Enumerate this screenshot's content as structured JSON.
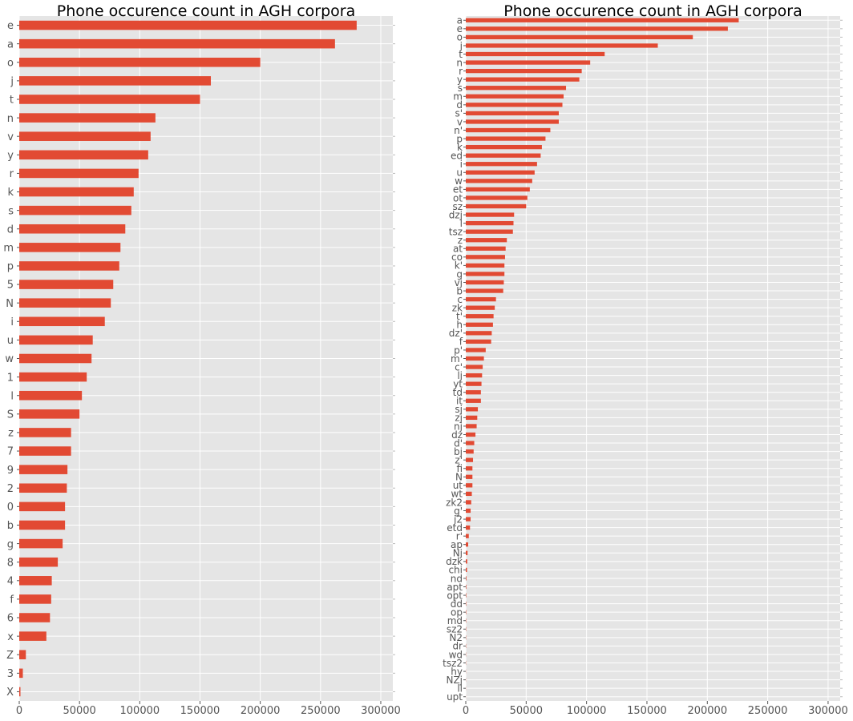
{
  "chart_data": [
    {
      "type": "bar",
      "orientation": "horizontal",
      "title": "Phone occurence count in AGH corpora",
      "xlabel": "",
      "ylabel": "",
      "xlim": [
        0,
        310000
      ],
      "xticks": [
        0,
        50000,
        100000,
        150000,
        200000,
        250000,
        300000
      ],
      "grid": true,
      "bar_color": "#e24a33",
      "categories": [
        "e",
        "a",
        "o",
        "j",
        "t",
        "n",
        "v",
        "y",
        "r",
        "k",
        "s",
        "d",
        "m",
        "p",
        "5",
        "N",
        "i",
        "u",
        "w",
        "1",
        "l",
        "S",
        "z",
        "7",
        "9",
        "2",
        "0",
        "b",
        "g",
        "8",
        "4",
        "f",
        "6",
        "x",
        "Z",
        "3",
        "X"
      ],
      "values": [
        280000,
        262000,
        200000,
        159000,
        150000,
        113000,
        109000,
        107000,
        99000,
        95000,
        93000,
        88000,
        84000,
        83000,
        78000,
        76000,
        71000,
        61000,
        60000,
        56000,
        52000,
        50000,
        43000,
        43000,
        40000,
        39500,
        38000,
        38000,
        36000,
        32000,
        27000,
        26500,
        25500,
        22500,
        5500,
        3000,
        1000
      ]
    },
    {
      "type": "bar",
      "orientation": "horizontal",
      "title": "Phone occurence count in AGH corpora",
      "xlabel": "",
      "ylabel": "",
      "xlim": [
        0,
        310000
      ],
      "xticks": [
        0,
        50000,
        100000,
        150000,
        200000,
        250000,
        300000
      ],
      "grid": true,
      "bar_color": "#e24a33",
      "categories": [
        "a",
        "e",
        "o",
        "j",
        "t",
        "n",
        "r",
        "y",
        "s",
        "m",
        "d",
        "s'",
        "v",
        "n'",
        "p",
        "k",
        "ed",
        "i",
        "u",
        "w",
        "et",
        "ot",
        "sz",
        "dzj",
        "l",
        "tsz",
        "z",
        "at",
        "co",
        "k'",
        "g",
        "vj",
        "b",
        "c",
        "zk",
        "t'",
        "h",
        "dz'",
        "f",
        "p'",
        "m'",
        "c'",
        "lj",
        "yt",
        "td",
        "it",
        "sj",
        "zj",
        "nj",
        "dz",
        "d'",
        "bj",
        "z'",
        "fi",
        "N",
        "ut",
        "wt",
        "zk2",
        "g'",
        "j2",
        "etd",
        "r'",
        "ap",
        "Nj",
        "dzk",
        "chi",
        "nd",
        "apt",
        "opt",
        "dd",
        "op",
        "md",
        "sz2",
        "N2",
        "dr",
        "wd",
        "tsz2",
        "hy",
        "NZj",
        "ll",
        "upt"
      ],
      "values": [
        226000,
        217000,
        188000,
        159000,
        115000,
        103000,
        96000,
        94000,
        83000,
        81000,
        80000,
        77000,
        77000,
        70000,
        66000,
        63000,
        62000,
        59000,
        57000,
        55000,
        53000,
        51000,
        50000,
        40000,
        39500,
        39000,
        34000,
        33000,
        32500,
        32000,
        32000,
        31500,
        31000,
        25000,
        24000,
        23000,
        22500,
        21500,
        21000,
        16500,
        15000,
        14000,
        13500,
        13000,
        12500,
        12500,
        10000,
        9500,
        9000,
        8000,
        7000,
        6500,
        6000,
        5500,
        5500,
        5500,
        5000,
        4500,
        4000,
        4000,
        3500,
        2500,
        2000,
        1500,
        1200,
        1000,
        500,
        400,
        350,
        300,
        300,
        250,
        250,
        200,
        200,
        150,
        150,
        100,
        100,
        80,
        50
      ]
    }
  ]
}
